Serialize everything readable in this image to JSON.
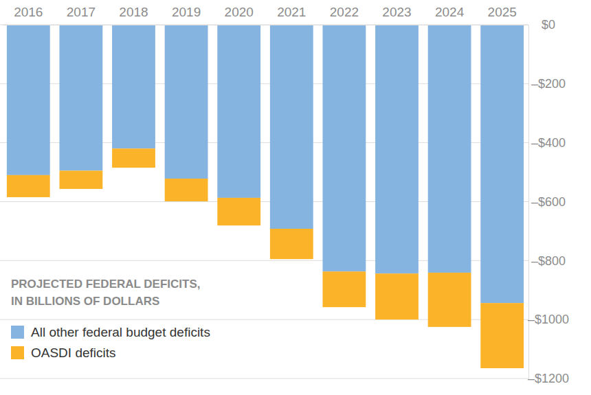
{
  "chart_data": {
    "type": "bar",
    "title": [
      "PROJECTED FEDERAL DEFICITS,",
      "IN BILLIONS OF DOLLARS"
    ],
    "categories": [
      "2016",
      "2017",
      "2018",
      "2019",
      "2020",
      "2021",
      "2022",
      "2023",
      "2024",
      "2025"
    ],
    "series": [
      {
        "name": "All other federal budget deficits",
        "color": "#85b4e0",
        "values": [
          -510,
          -495,
          -420,
          -522,
          -587,
          -692,
          -837,
          -844,
          -841,
          -944
        ]
      },
      {
        "name": "OASDI deficits",
        "color": "#fbb32a",
        "values": [
          -75,
          -62,
          -65,
          -77,
          -94,
          -103,
          -121,
          -156,
          -184,
          -221
        ]
      }
    ],
    "stacked": true,
    "ylim": [
      -1200,
      0
    ],
    "yticks": [
      {
        "value": 0,
        "label": "$0"
      },
      {
        "value": -200,
        "label": "–$200"
      },
      {
        "value": -400,
        "label": "–$400"
      },
      {
        "value": -600,
        "label": "–$600"
      },
      {
        "value": -800,
        "label": "–$800"
      },
      {
        "value": -1000,
        "label": "–$1000"
      },
      {
        "value": -1200,
        "label": "–$1200"
      }
    ],
    "grid": true,
    "legend": "bottom-left"
  }
}
